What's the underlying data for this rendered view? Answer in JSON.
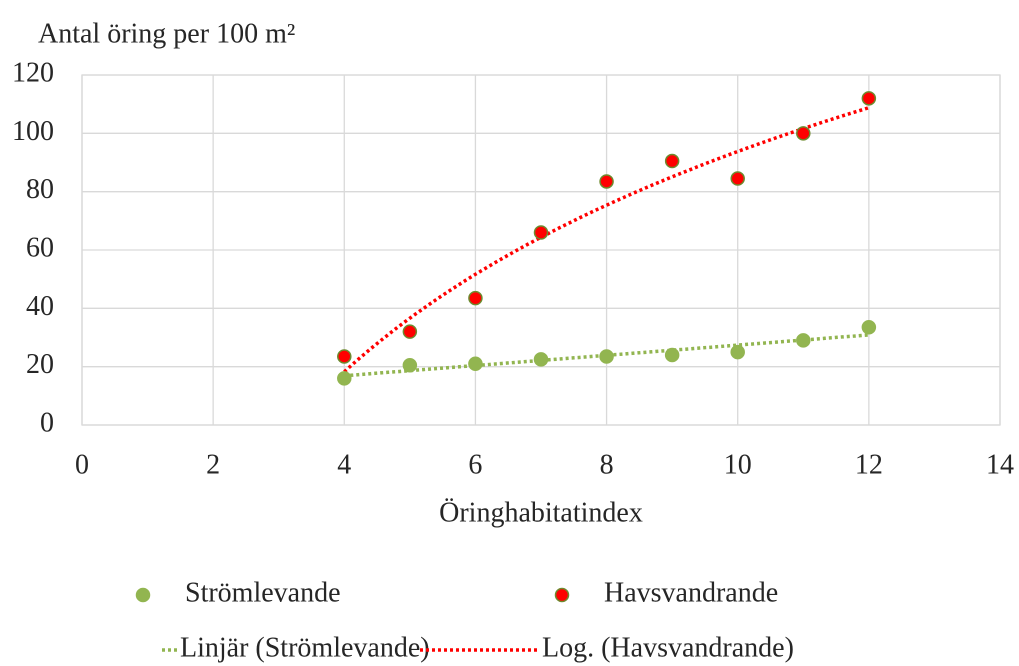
{
  "chart_data": {
    "type": "scatter",
    "y_label": "Antal öring per 100 m²",
    "x_label": "Öringhabitatindex",
    "xlim": [
      0,
      14
    ],
    "xticks": [
      0,
      2,
      4,
      6,
      8,
      10,
      12,
      14
    ],
    "ylim": [
      0,
      120
    ],
    "yticks": [
      0,
      20,
      40,
      60,
      80,
      100,
      120
    ],
    "grid": true,
    "legend": "bottom",
    "series": [
      {
        "name": "Strömlevande",
        "color": "#92b550",
        "edge": "#92b550",
        "x": [
          4,
          5,
          6,
          7,
          8,
          9,
          10,
          11,
          12
        ],
        "values": [
          16,
          20.5,
          21,
          22.5,
          23.5,
          24,
          25,
          29,
          33.5
        ],
        "trendline": {
          "type": "linear",
          "name": "Linjär (Strömlevande)",
          "color": "#92b550"
        }
      },
      {
        "name": "Havsvandrande",
        "color": "#ff0000",
        "edge": "#6d8a2e",
        "x": [
          4,
          5,
          6,
          7,
          8,
          9,
          10,
          11,
          12
        ],
        "values": [
          23.5,
          32,
          43.5,
          66,
          83.5,
          90.5,
          84.5,
          100,
          112
        ],
        "trendline": {
          "type": "log",
          "name": "Log. (Havsvandrande)",
          "color": "#ff0000"
        }
      }
    ]
  }
}
